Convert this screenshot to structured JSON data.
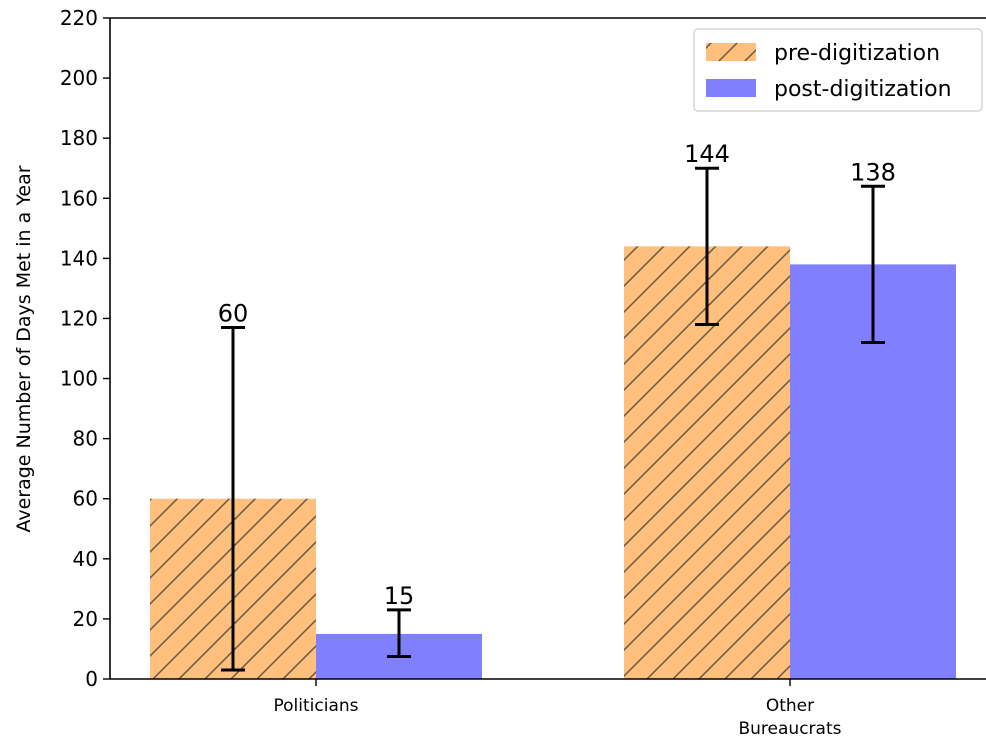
{
  "chart_data": {
    "type": "bar",
    "categories": [
      "Politicians",
      "Other\nBureaucrats"
    ],
    "series": [
      {
        "name": "pre-digitization",
        "values": [
          60,
          144
        ],
        "error_low": [
          3,
          118
        ],
        "error_high": [
          117,
          170
        ],
        "labels": [
          "60",
          "144"
        ],
        "color": "#ffc07e",
        "hatch": true
      },
      {
        "name": "post-digitization",
        "values": [
          15,
          138
        ],
        "error_low": [
          7.5,
          112
        ],
        "error_high": [
          23,
          164
        ],
        "labels": [
          "15",
          "138"
        ],
        "color": "#8080ff",
        "hatch": false
      }
    ],
    "ylabel": "Average Number of Days Met in a Year",
    "xlabel": "",
    "ylim": [
      0,
      220
    ],
    "yticks": [
      0,
      20,
      40,
      60,
      80,
      100,
      120,
      140,
      160,
      180,
      200,
      220
    ],
    "legend_position": "top-right",
    "grid": false
  }
}
